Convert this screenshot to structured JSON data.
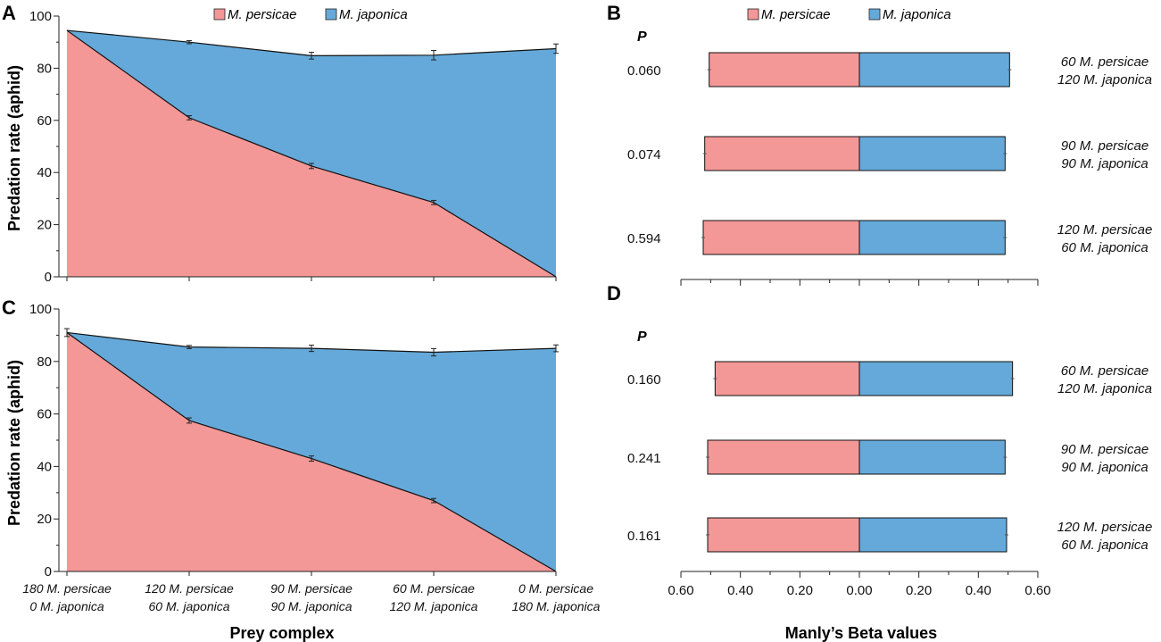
{
  "colors": {
    "persicae": "#F49797",
    "japonica": "#64A9D9",
    "axis": "#222222"
  },
  "panels": {
    "a": "A",
    "b": "B",
    "c": "C",
    "d": "D"
  },
  "legend": {
    "persicae": "M. persicae",
    "japonica": "M. japonica"
  },
  "xaxis_title": "Prey complex",
  "beta_xaxis_title": "Manly’s Beta values",
  "p_header": "P",
  "chart_data": [
    {
      "panel": "A",
      "type": "area",
      "title": "",
      "xlabel": "Prey complex",
      "ylabel": "Predation rate (aphid)",
      "ylim": [
        0,
        100
      ],
      "yticks": [
        0,
        20,
        40,
        60,
        80,
        100
      ],
      "categories": [
        [
          "180 M. persicae",
          "0 M. japonica"
        ],
        [
          "120 M. persicae",
          "60 M. japonica"
        ],
        [
          "90 M. persicae",
          "90 M. japonica"
        ],
        [
          "60 M. persicae",
          "120 M. japonica"
        ],
        [
          "0 M. persicae",
          "180 M. japonica"
        ]
      ],
      "series": [
        {
          "name": "M. persicae",
          "values": [
            94.5,
            61,
            42.5,
            28.5,
            0
          ],
          "errors": [
            0,
            0.8,
            1,
            0.8,
            0
          ]
        },
        {
          "name": "M. japonica (total)",
          "values": [
            94.5,
            90,
            84.8,
            85,
            87.5
          ],
          "errors": [
            0,
            0.6,
            1.3,
            1.8,
            1.8
          ]
        }
      ]
    },
    {
      "panel": "B",
      "type": "bar",
      "orientation": "horizontal",
      "xlabel": "",
      "xlim": [
        -0.6,
        0.6
      ],
      "p_values": [
        "0.060",
        "0.074",
        "0.594"
      ],
      "labels": [
        [
          "60 M. persicae",
          "120 M. japonica"
        ],
        [
          "90 M. persicae",
          "90 M. japonica"
        ],
        [
          "120 M. persicae",
          "60 M. japonica"
        ]
      ],
      "series": [
        {
          "name": "M. persicae",
          "values": [
            0.505,
            0.52,
            0.525
          ],
          "errors": [
            0.006,
            0.006,
            0.006
          ]
        },
        {
          "name": "M. japonica",
          "values": [
            0.505,
            0.49,
            0.49
          ],
          "errors": [
            0.006,
            0.006,
            0.006
          ]
        }
      ]
    },
    {
      "panel": "C",
      "type": "area",
      "title": "",
      "xlabel": "Prey complex",
      "ylabel": "Predation rate (aphid)",
      "ylim": [
        0,
        100
      ],
      "yticks": [
        0,
        20,
        40,
        60,
        80,
        100
      ],
      "categories": [
        [
          "180 M. persicae",
          "0 M. japonica"
        ],
        [
          "120 M. persicae",
          "60 M. japonica"
        ],
        [
          "90 M. persicae",
          "90 M. japonica"
        ],
        [
          "60 M. persicae",
          "120 M. japonica"
        ],
        [
          "0 M. persicae",
          "180 M. japonica"
        ]
      ],
      "series": [
        {
          "name": "M. persicae",
          "values": [
            91,
            57.5,
            43,
            27,
            0
          ],
          "errors": [
            0,
            1,
            1,
            0.8,
            0
          ]
        },
        {
          "name": "M. japonica (total)",
          "values": [
            91,
            85.5,
            85,
            83.5,
            85
          ],
          "errors": [
            1.5,
            0.6,
            1.2,
            1.4,
            1.3
          ]
        }
      ]
    },
    {
      "panel": "D",
      "type": "bar",
      "orientation": "horizontal",
      "xlabel": "Manly’s Beta values",
      "xlim": [
        -0.6,
        0.6
      ],
      "xticks": [
        "0.60",
        "0.40",
        "0.20",
        "0.00",
        "0.20",
        "0.40",
        "0.60"
      ],
      "p_values": [
        "0.160",
        "0.241",
        "0.161"
      ],
      "labels": [
        [
          "60 M. persicae",
          "120 M. japonica"
        ],
        [
          "90 M. persicae",
          "90 M. japonica"
        ],
        [
          "120 M. persicae",
          "60 M. japonica"
        ]
      ],
      "series": [
        {
          "name": "M. persicae",
          "values": [
            0.485,
            0.51,
            0.51
          ],
          "errors": [
            0.006,
            0.006,
            0.006
          ]
        },
        {
          "name": "M. japonica",
          "values": [
            0.515,
            0.49,
            0.495
          ],
          "errors": [
            0.006,
            0.006,
            0.006
          ]
        }
      ]
    }
  ]
}
